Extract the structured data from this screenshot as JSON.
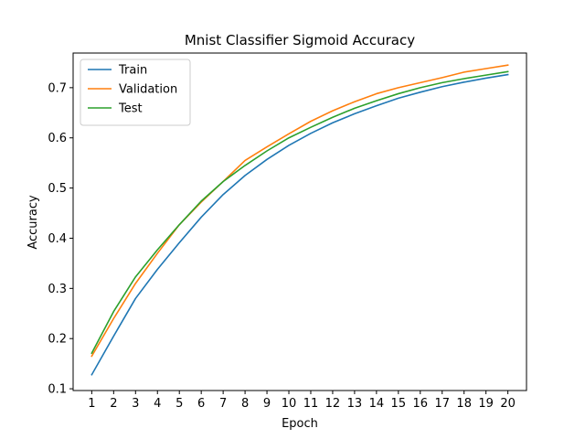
{
  "chart_data": {
    "type": "line",
    "title": "Mnist Classifier Sigmoid Accuracy",
    "xlabel": "Epoch",
    "ylabel": "Accuracy",
    "x": [
      1,
      2,
      3,
      4,
      5,
      6,
      7,
      8,
      9,
      10,
      11,
      12,
      13,
      14,
      15,
      16,
      17,
      18,
      19,
      20
    ],
    "xlim": [
      0.15,
      20.85
    ],
    "ylim": [
      0.0965,
      0.769
    ],
    "yticks": [
      0.1,
      0.2,
      0.3,
      0.4,
      0.5,
      0.6,
      0.7
    ],
    "ytick_labels": [
      "0.1",
      "0.2",
      "0.3",
      "0.4",
      "0.5",
      "0.6",
      "0.7"
    ],
    "grid": false,
    "legend_position": "top-left",
    "series": [
      {
        "name": "Train",
        "color": "#1f77b4",
        "values": [
          0.128,
          0.205,
          0.28,
          0.338,
          0.391,
          0.442,
          0.487,
          0.525,
          0.557,
          0.585,
          0.609,
          0.63,
          0.648,
          0.664,
          0.679,
          0.691,
          0.702,
          0.711,
          0.719,
          0.726
        ]
      },
      {
        "name": "Validation",
        "color": "#ff7f0e",
        "values": [
          0.165,
          0.24,
          0.31,
          0.37,
          0.427,
          0.472,
          0.513,
          0.555,
          0.582,
          0.608,
          0.633,
          0.654,
          0.672,
          0.688,
          0.7,
          0.71,
          0.72,
          0.731,
          0.738,
          0.745
        ]
      },
      {
        "name": "Test",
        "color": "#2ca02c",
        "values": [
          0.171,
          0.254,
          0.323,
          0.377,
          0.427,
          0.474,
          0.513,
          0.545,
          0.574,
          0.6,
          0.621,
          0.641,
          0.659,
          0.674,
          0.688,
          0.7,
          0.71,
          0.718,
          0.725,
          0.732
        ]
      }
    ]
  }
}
